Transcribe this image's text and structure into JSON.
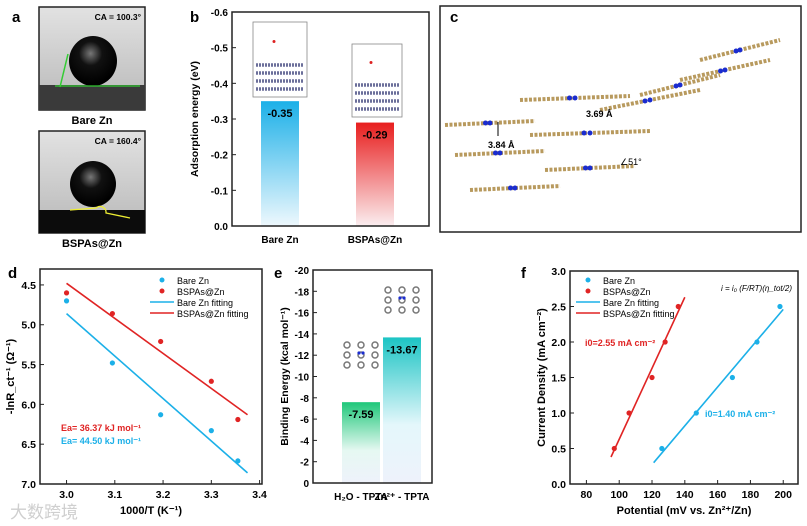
{
  "colors": {
    "blue": "#1cb0e8",
    "red": "#e02424",
    "green": "#1fc77a",
    "teal": "#1cc4c4"
  },
  "watermark": "大数跨境",
  "panel_a": {
    "letter": "a",
    "top": {
      "ca": "CA = 100.3°",
      "label": "Bare Zn"
    },
    "bottom": {
      "ca": "CA = 160.4°",
      "label": "BSPAs@Zn"
    }
  },
  "panel_c": {
    "letter": "c",
    "distance1": "3.69 Å",
    "distance2": "3.84 Å",
    "angle": "∠51°"
  },
  "chart_data": [
    {
      "id": "b",
      "letter": "b",
      "type": "bar",
      "title": "",
      "xlabel": "",
      "ylabel": "Adsorption energy (eV)",
      "ylim": [
        0,
        -0.6
      ],
      "yticks": [
        "0.0",
        "-0.1",
        "-0.2",
        "-0.3",
        "-0.4",
        "-0.5",
        "-0.6"
      ],
      "categories": [
        "Bare Zn",
        "BSPAs@Zn"
      ],
      "values": [
        -0.35,
        -0.29
      ],
      "value_labels": [
        "-0.35",
        "-0.29"
      ]
    },
    {
      "id": "d",
      "letter": "d",
      "type": "scatter",
      "xlabel": "1000/T (K⁻¹)",
      "ylabel": "-lnR_ct⁻¹ (Ω⁻¹)",
      "xlim": [
        2.945,
        3.405
      ],
      "ylim": [
        4.3,
        7.0
      ],
      "xticks": [
        "3.0",
        "3.1",
        "3.2",
        "3.3",
        "3.4"
      ],
      "yticks": [
        "4.5",
        "5.0",
        "5.5",
        "6.0",
        "6.5",
        "7.0"
      ],
      "series": [
        {
          "name": "Bare Zn",
          "color": "blue",
          "x": [
            3.0,
            3.095,
            3.195,
            3.3,
            3.355
          ],
          "y": [
            4.7,
            5.48,
            6.13,
            6.33,
            6.71
          ]
        },
        {
          "name": "BSPAs@Zn",
          "color": "red",
          "x": [
            3.0,
            3.095,
            3.195,
            3.3,
            3.355
          ],
          "y": [
            4.6,
            4.86,
            5.21,
            5.71,
            6.19
          ]
        }
      ],
      "fits": [
        {
          "name": "Bare Zn fitting",
          "color": "blue",
          "x": [
            3.0,
            3.375
          ],
          "y": [
            4.86,
            6.86
          ]
        },
        {
          "name": "BSPAs@Zn fitting",
          "color": "red",
          "x": [
            3.0,
            3.375
          ],
          "y": [
            4.48,
            6.13
          ]
        }
      ],
      "annotations": [
        "Ea= 36.37 kJ mol⁻¹",
        "Ea= 44.50 kJ mol⁻¹"
      ],
      "legend": "top-right"
    },
    {
      "id": "e",
      "letter": "e",
      "type": "bar",
      "ylabel": "Binding Energy (kcal mol⁻¹)",
      "ylim": [
        0,
        -20
      ],
      "yticks": [
        "0",
        "-2",
        "-4",
        "-6",
        "-8",
        "-10",
        "-12",
        "-14",
        "-16",
        "-18",
        "-20"
      ],
      "categories": [
        "H₂O - TPTA",
        "Zn²⁺ - TPTA"
      ],
      "values": [
        -7.59,
        -13.67
      ],
      "value_labels": [
        "-7.59",
        "-13.67"
      ]
    },
    {
      "id": "f",
      "letter": "f",
      "type": "scatter",
      "xlabel": "Potential (mV vs. Zn²⁺/Zn)",
      "ylabel": "Current Density (mA cm⁻²)",
      "xlim": [
        70,
        209
      ],
      "ylim": [
        0,
        3.0
      ],
      "xticks": [
        "80",
        "100",
        "120",
        "140",
        "160",
        "180",
        "200"
      ],
      "yticks": [
        "0.0",
        "0.5",
        "1.0",
        "1.5",
        "2.0",
        "2.5",
        "3.0"
      ],
      "series": [
        {
          "name": "Bare Zn",
          "color": "blue",
          "x": [
            126,
            147,
            169,
            184,
            198
          ],
          "y": [
            0.5,
            1.0,
            1.5,
            2.0,
            2.5
          ]
        },
        {
          "name": "BSPAs@Zn",
          "color": "red",
          "x": [
            97,
            106,
            120,
            128,
            136
          ],
          "y": [
            0.5,
            1.0,
            1.5,
            2.0,
            2.5
          ]
        }
      ],
      "fits": [
        {
          "name": "Bare Zn fitting",
          "color": "blue",
          "x": [
            121,
            200
          ],
          "y": [
            0.3,
            2.46
          ]
        },
        {
          "name": "BSPAs@Zn fitting",
          "color": "red",
          "x": [
            95,
            140
          ],
          "y": [
            0.38,
            2.63
          ]
        }
      ],
      "annotations": [
        "i0=2.55 mA cm⁻²",
        "i0=1.40 mA cm⁻²"
      ],
      "equation": "i = i₀ (F/RT)(η_tot/2)",
      "legend": "top-left"
    }
  ]
}
